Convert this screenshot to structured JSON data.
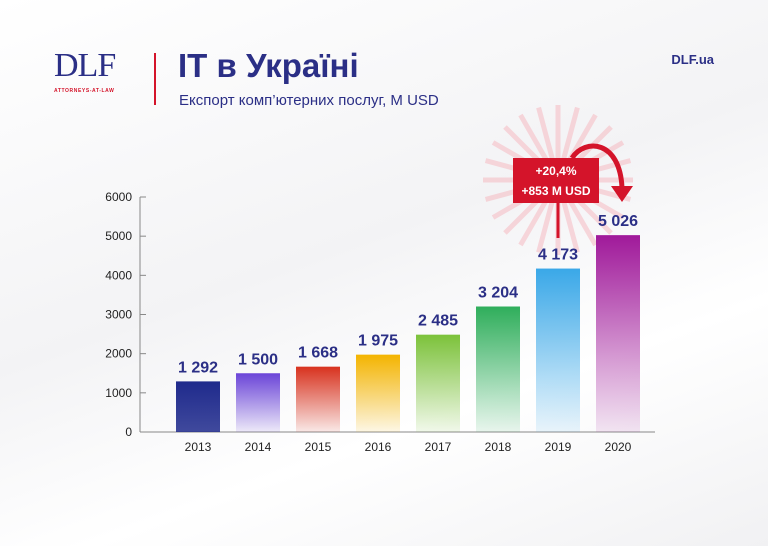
{
  "header": {
    "logo_text": "DLF",
    "logo_subtext": "ATTORNEYS-AT-LAW",
    "title": "IT в Україні",
    "subtitle": "Експорт комп’ютерних послуг, M USD",
    "site": "DLF.ua"
  },
  "chart_data": {
    "type": "bar",
    "title": "IT в Україні",
    "subtitle": "Експорт комп’ютерних послуг, M USD",
    "xlabel": "",
    "ylabel": "",
    "ylim": [
      0,
      6000
    ],
    "yticks": [
      0,
      1000,
      2000,
      3000,
      4000,
      5000,
      6000
    ],
    "categories": [
      "2013",
      "2014",
      "2015",
      "2016",
      "2017",
      "2018",
      "2019",
      "2020"
    ],
    "values": [
      1292,
      1500,
      1668,
      1975,
      2485,
      3204,
      4173,
      5026
    ],
    "value_labels": [
      "1 292",
      "1 500",
      "1 668",
      "1 975",
      "2 485",
      "3 204",
      "4 173",
      "5 026"
    ],
    "colors": [
      "#1f2a8c",
      "#6b45d8",
      "#d8321e",
      "#f4b400",
      "#7cc23a",
      "#2fae5b",
      "#3aa8e8",
      "#a0199a"
    ],
    "annotation": {
      "line1": "+20,4%",
      "line2": "+853 M USD",
      "color": "#d4142a"
    },
    "grid": false
  }
}
